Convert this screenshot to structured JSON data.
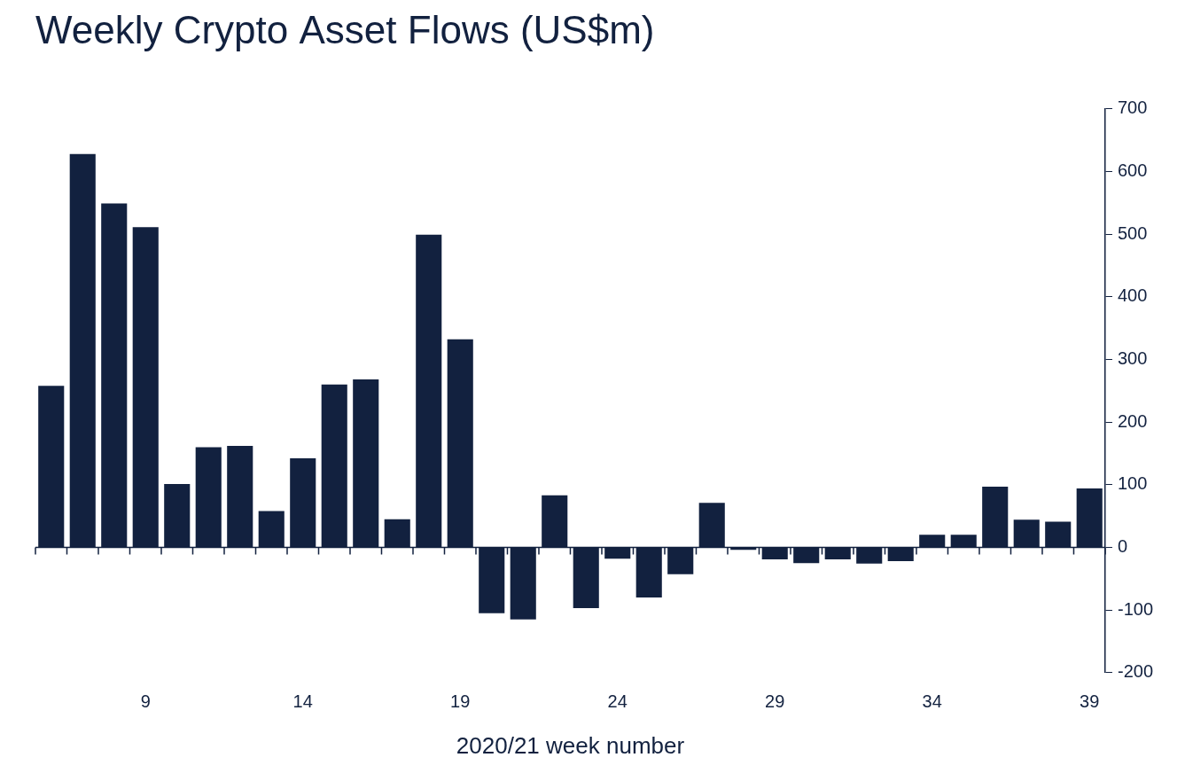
{
  "chart_data": {
    "type": "bar",
    "title": "Weekly Crypto Asset Flows (US$m)",
    "x_label": "2020/21 week number",
    "categories": [
      null,
      null,
      null,
      "9",
      null,
      null,
      null,
      null,
      "14",
      null,
      null,
      null,
      null,
      "19",
      null,
      null,
      null,
      null,
      "24",
      null,
      null,
      null,
      null,
      "29",
      null,
      null,
      null,
      null,
      "34",
      null,
      null,
      null,
      null,
      "39"
    ],
    "values": [
      258,
      628,
      549,
      511,
      101,
      160,
      162,
      58,
      142,
      260,
      268,
      45,
      499,
      332,
      -105,
      -115,
      83,
      -97,
      -18,
      -80,
      -43,
      71,
      -4,
      -19,
      -25,
      -19,
      -26,
      -22,
      20,
      20,
      97,
      44,
      41,
      94
    ],
    "color": "#12213f",
    "ylim": [
      -200,
      700
    ],
    "yticks": [
      -200,
      -100,
      0,
      100,
      200,
      300,
      400,
      500,
      600,
      700
    ],
    "grid": false
  }
}
